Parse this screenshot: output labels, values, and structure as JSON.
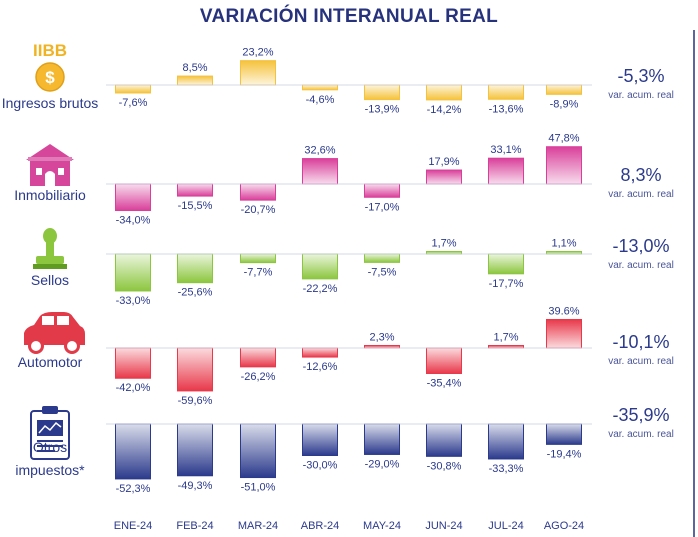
{
  "chart_data": {
    "type": "bar",
    "title": "VARIACIÓN INTERANUAL REAL",
    "categories": [
      "ENE-24",
      "FEB-24",
      "MAR-24",
      "ABR-24",
      "MAY-24",
      "JUN-24",
      "JUL-24",
      "AGO-24"
    ],
    "unit": "%",
    "accum_caption": "var. acum. real",
    "series": [
      {
        "name": "Ingresos brutos",
        "icon_text": "IIBB",
        "icon": "coin-dollar-icon",
        "values": [
          -7.6,
          8.5,
          23.2,
          -4.6,
          -13.9,
          -14.2,
          -13.6,
          -8.9
        ],
        "labels": [
          "-7,6%",
          "8,5%",
          "23,2%",
          "-4,6%",
          "-13,9%",
          "-14,2%",
          "-13,6%",
          "-8,9%"
        ],
        "accumulated": "-5,3%",
        "color": "#f5c23b"
      },
      {
        "name": "Inmobiliario",
        "icon": "house-icon",
        "values": [
          -34.0,
          -15.5,
          -20.7,
          32.6,
          -17.0,
          17.9,
          33.1,
          47.8
        ],
        "labels": [
          "-34,0%",
          "-15,5%",
          "-20,7%",
          "32,6%",
          "-17,0%",
          "17,9%",
          "33,1%",
          "47,8%"
        ],
        "accumulated": "8,3%",
        "color": "#d93f9a"
      },
      {
        "name": "Sellos",
        "icon": "rubber-stamp-icon",
        "values": [
          -33.0,
          -25.6,
          -7.7,
          -22.2,
          -7.5,
          1.7,
          -17.7,
          1.1
        ],
        "labels": [
          "-33,0%",
          "-25,6%",
          "-7,7%",
          "-22,2%",
          "-7,5%",
          "1,7%",
          "-17,7%",
          "1,1%"
        ],
        "accumulated": "-13,0%",
        "color": "#8cc63f"
      },
      {
        "name": "Automotor",
        "icon": "car-icon",
        "values": [
          -42.0,
          -59.6,
          -26.2,
          -12.6,
          2.3,
          -35.4,
          1.7,
          39.6
        ],
        "labels": [
          "-42,0%",
          "-59,6%",
          "-26,2%",
          "-12,6%",
          "2,3%",
          "-35,4%",
          "1,7%",
          "39.6%"
        ],
        "accumulated": "-10,1%",
        "color": "#e8384a"
      },
      {
        "name": "Otros impuestos*",
        "icon": "document-chart-icon",
        "values": [
          -52.3,
          -49.3,
          -51.0,
          -30.0,
          -29.0,
          -30.8,
          -33.3,
          -19.4
        ],
        "labels": [
          "-52,3%",
          "-49,3%",
          "-51,0%",
          "-30,0%",
          "-29,0%",
          "-30,8%",
          "-33,3%",
          "-19,4%"
        ],
        "accumulated": "-35,9%",
        "color": "#2b3a8c"
      }
    ]
  }
}
